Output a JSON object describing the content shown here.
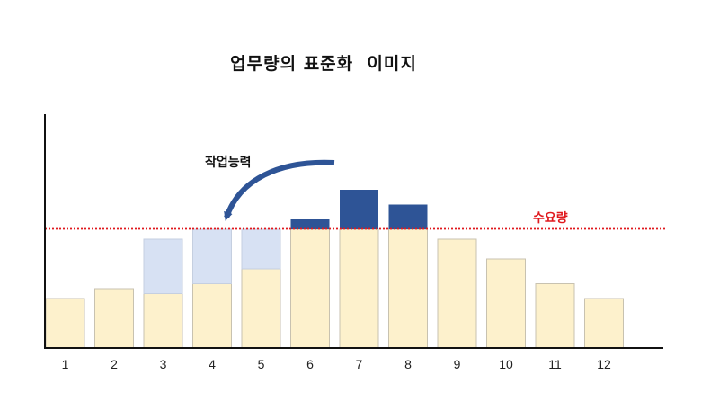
{
  "chart_data": {
    "type": "bar",
    "title": "업무량의 표준화  이미지",
    "categories": [
      "1",
      "2",
      "3",
      "4",
      "5",
      "6",
      "7",
      "8",
      "9",
      "10",
      "11",
      "12"
    ],
    "series": [
      {
        "values": [
          5,
          6,
          5.5,
          6.5,
          8,
          12,
          12,
          12,
          11,
          9,
          6.5,
          5
        ]
      },
      {
        "values": [
          0,
          0,
          5.5,
          5.5,
          4,
          0,
          0,
          0,
          0,
          0,
          0,
          0
        ]
      },
      {
        "values": [
          0,
          0,
          0,
          0,
          0,
          1,
          4,
          2.5,
          0,
          0,
          0,
          0
        ]
      }
    ],
    "demand_level": 12,
    "demand_label": "수요량",
    "capacity_label": "작업능력",
    "ylim": [
      0,
      23.5
    ],
    "colors": {
      "base": "#fdf1cc",
      "base_stroke": "#c8c2b0",
      "shifted": "#d7e1f3",
      "shifted_stroke": "#c5cfe0",
      "excess": "#2e5496",
      "demand_line": "#e0191e",
      "axis": "#111111"
    }
  }
}
